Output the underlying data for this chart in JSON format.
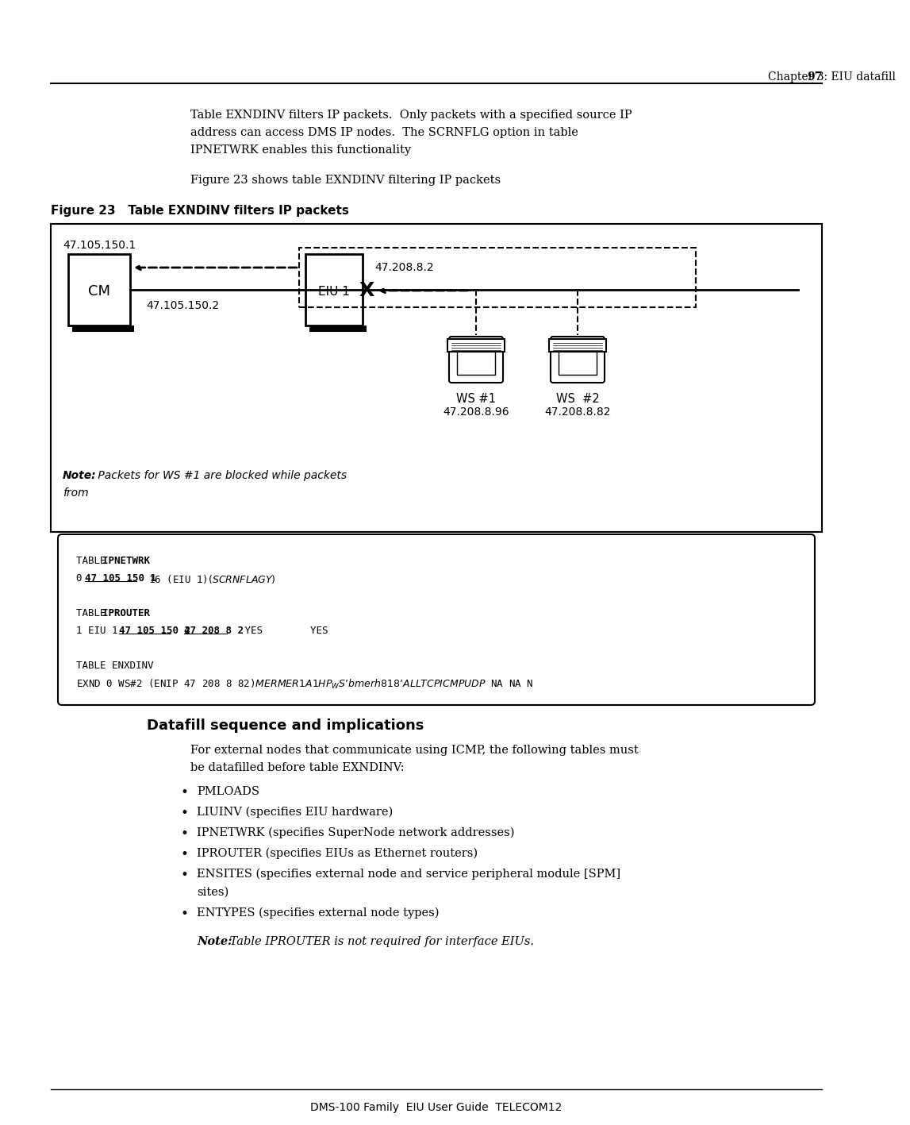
{
  "page_header_right": "Chapter 3: EIU datafill   97",
  "body_text_intro": "Table EXNDINV filters IP packets.  Only packets with a specified source IP\naddress can access DMS IP nodes.  The SCRNFLG option in table\nIPNETWRK enables this functionality",
  "figure_ref_text": "Figure 23 shows table EXNDINV filtering IP packets",
  "figure_caption": "Figure 23   Table EXNDINV filters IP packets",
  "diagram_ip_top": "47.105.150.1",
  "diagram_cm_label": "CM",
  "diagram_eiu_label": "EIU 1",
  "diagram_ip_right": "47.208.8.2",
  "diagram_ip_bottom": "47.105.150.2",
  "diagram_ws1_label": "WS #1",
  "diagram_ws2_label": "WS  #2",
  "diagram_ws1_ip": "47.208.8.96",
  "diagram_ws2_ip": "47.208.8.82",
  "section_title": "Datafill sequence and implications",
  "section_intro": "For external nodes that communicate using ICMP, the following tables must\nbe datafilled before table EXNDINV:",
  "bullet_items": [
    "PMLOADS",
    "LIUINV (specifies EIU hardware)",
    "IPNETWRK (specifies SuperNode network addresses)",
    "IPROUTER (specifies EIUs as Ethernet routers)",
    "ENSITES (specifies external node and service peripheral module [SPM]\nsites)",
    "ENTYPES (specifies external node types)"
  ],
  "note_bottom": "Note: Table IPROUTER is not required for interface EIUs.",
  "footer_text": "DMS-100 Family  EIU User Guide  TELECOM12",
  "bg_color": "#ffffff"
}
